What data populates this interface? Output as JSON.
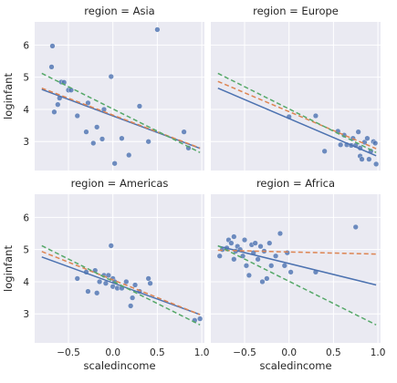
{
  "chart_data": {
    "type": "scatter",
    "xlabel": "scaledincome",
    "ylabel": "loginfant",
    "xlim": [
      -0.88,
      1.03
    ],
    "ylim": [
      2.1,
      6.72
    ],
    "xticks": [
      -0.5,
      0.0,
      0.5,
      1.0
    ],
    "xtick_labels": [
      "−0.5",
      "0.0",
      "0.5",
      "1.0"
    ],
    "yticks": [
      3,
      4,
      5,
      6
    ],
    "ytick_labels": [
      "3",
      "4",
      "5",
      "6"
    ],
    "grid": true,
    "colors": {
      "background": "#eaeaf2",
      "grid": "#ffffff",
      "points": "#4c72b0",
      "line_blue": "#4c72b0",
      "line_orange": "#dd8452",
      "line_green": "#55a868"
    },
    "panels": [
      {
        "title": "region = Asia",
        "points": [
          [
            -0.68,
            5.97
          ],
          [
            -0.69,
            5.32
          ],
          [
            -0.58,
            4.85
          ],
          [
            -0.55,
            4.84
          ],
          [
            -0.6,
            4.35
          ],
          [
            -0.66,
            3.92
          ],
          [
            -0.62,
            4.15
          ],
          [
            -0.5,
            4.6
          ],
          [
            -0.47,
            4.6
          ],
          [
            -0.4,
            3.8
          ],
          [
            -0.3,
            3.3
          ],
          [
            -0.28,
            4.2
          ],
          [
            -0.22,
            2.95
          ],
          [
            -0.18,
            3.45
          ],
          [
            -0.12,
            3.08
          ],
          [
            -0.1,
            4.0
          ],
          [
            -0.02,
            5.02
          ],
          [
            0.02,
            2.32
          ],
          [
            0.1,
            3.1
          ],
          [
            0.18,
            2.58
          ],
          [
            0.3,
            4.1
          ],
          [
            0.4,
            3.0
          ],
          [
            0.5,
            6.48
          ],
          [
            0.8,
            3.3
          ],
          [
            0.85,
            2.8
          ]
        ],
        "lines": [
          {
            "color": "blue",
            "dash": false,
            "y_at_x0": 4.62,
            "y_at_x1": 2.79
          },
          {
            "color": "orange",
            "dash": true,
            "y_at_x0": 4.66,
            "y_at_x1": 2.8
          },
          {
            "color": "green",
            "dash": true,
            "y_at_x0": 5.12,
            "y_at_x1": 2.66
          }
        ]
      },
      {
        "title": "region = Europe",
        "points": [
          [
            0.0,
            3.77
          ],
          [
            0.3,
            3.8
          ],
          [
            0.4,
            2.7
          ],
          [
            0.55,
            3.32
          ],
          [
            0.58,
            2.9
          ],
          [
            0.62,
            3.2
          ],
          [
            0.65,
            2.9
          ],
          [
            0.7,
            2.88
          ],
          [
            0.72,
            3.1
          ],
          [
            0.75,
            2.88
          ],
          [
            0.78,
            3.3
          ],
          [
            0.8,
            2.8
          ],
          [
            0.8,
            2.55
          ],
          [
            0.82,
            2.45
          ],
          [
            0.85,
            2.98
          ],
          [
            0.88,
            3.1
          ],
          [
            0.9,
            2.45
          ],
          [
            0.92,
            2.7
          ],
          [
            0.95,
            3.0
          ],
          [
            0.97,
            2.95
          ],
          [
            0.98,
            2.3
          ]
        ],
        "lines": [
          {
            "color": "blue",
            "dash": false,
            "y_at_x0": 4.66,
            "y_at_x1": 2.56
          },
          {
            "color": "orange",
            "dash": true,
            "y_at_x0": 4.87,
            "y_at_x1": 2.78
          },
          {
            "color": "green",
            "dash": true,
            "y_at_x0": 5.12,
            "y_at_x1": 2.66
          }
        ]
      },
      {
        "title": "region = Americas",
        "points": [
          [
            -0.4,
            4.1
          ],
          [
            -0.3,
            4.3
          ],
          [
            -0.28,
            3.7
          ],
          [
            -0.2,
            4.35
          ],
          [
            -0.18,
            3.65
          ],
          [
            -0.15,
            4.0
          ],
          [
            -0.1,
            4.2
          ],
          [
            -0.08,
            3.95
          ],
          [
            -0.05,
            4.2
          ],
          [
            -0.02,
            5.12
          ],
          [
            0.0,
            4.1
          ],
          [
            0.0,
            3.85
          ],
          [
            0.02,
            4.0
          ],
          [
            0.05,
            3.8
          ],
          [
            0.1,
            3.8
          ],
          [
            0.15,
            4.0
          ],
          [
            0.2,
            3.25
          ],
          [
            0.22,
            3.5
          ],
          [
            0.25,
            3.9
          ],
          [
            0.3,
            3.7
          ],
          [
            0.4,
            4.1
          ],
          [
            0.42,
            3.95
          ],
          [
            0.92,
            2.8
          ],
          [
            0.98,
            2.85
          ]
        ],
        "lines": [
          {
            "color": "blue",
            "dash": false,
            "y_at_x0": 4.77,
            "y_at_x1": 2.98
          },
          {
            "color": "orange",
            "dash": true,
            "y_at_x0": 4.94,
            "y_at_x1": 2.98
          },
          {
            "color": "green",
            "dash": true,
            "y_at_x0": 5.12,
            "y_at_x1": 2.66
          }
        ]
      },
      {
        "title": "region = Africa",
        "points": [
          [
            -0.78,
            4.8
          ],
          [
            -0.75,
            5.0
          ],
          [
            -0.7,
            5.05
          ],
          [
            -0.68,
            5.3
          ],
          [
            -0.65,
            5.2
          ],
          [
            -0.62,
            5.4
          ],
          [
            -0.62,
            4.7
          ],
          [
            -0.6,
            4.95
          ],
          [
            -0.58,
            5.1
          ],
          [
            -0.55,
            5.0
          ],
          [
            -0.52,
            4.8
          ],
          [
            -0.5,
            5.3
          ],
          [
            -0.48,
            4.5
          ],
          [
            -0.45,
            4.2
          ],
          [
            -0.42,
            5.15
          ],
          [
            -0.4,
            4.9
          ],
          [
            -0.38,
            5.2
          ],
          [
            -0.35,
            4.7
          ],
          [
            -0.32,
            5.1
          ],
          [
            -0.3,
            4.0
          ],
          [
            -0.28,
            4.95
          ],
          [
            -0.25,
            4.1
          ],
          [
            -0.22,
            5.2
          ],
          [
            -0.2,
            4.5
          ],
          [
            -0.15,
            4.8
          ],
          [
            -0.1,
            5.5
          ],
          [
            -0.05,
            4.5
          ],
          [
            -0.02,
            4.9
          ],
          [
            0.02,
            4.3
          ],
          [
            0.3,
            4.3
          ],
          [
            0.75,
            5.7
          ]
        ],
        "lines": [
          {
            "color": "blue",
            "dash": false,
            "y_at_x0": 5.11,
            "y_at_x1": 3.9
          },
          {
            "color": "orange",
            "dash": true,
            "y_at_x0": 4.98,
            "y_at_x1": 4.86
          },
          {
            "color": "green",
            "dash": true,
            "y_at_x0": 5.12,
            "y_at_x1": 2.66
          }
        ]
      }
    ],
    "line_x_range": [
      -0.8,
      0.98
    ]
  }
}
